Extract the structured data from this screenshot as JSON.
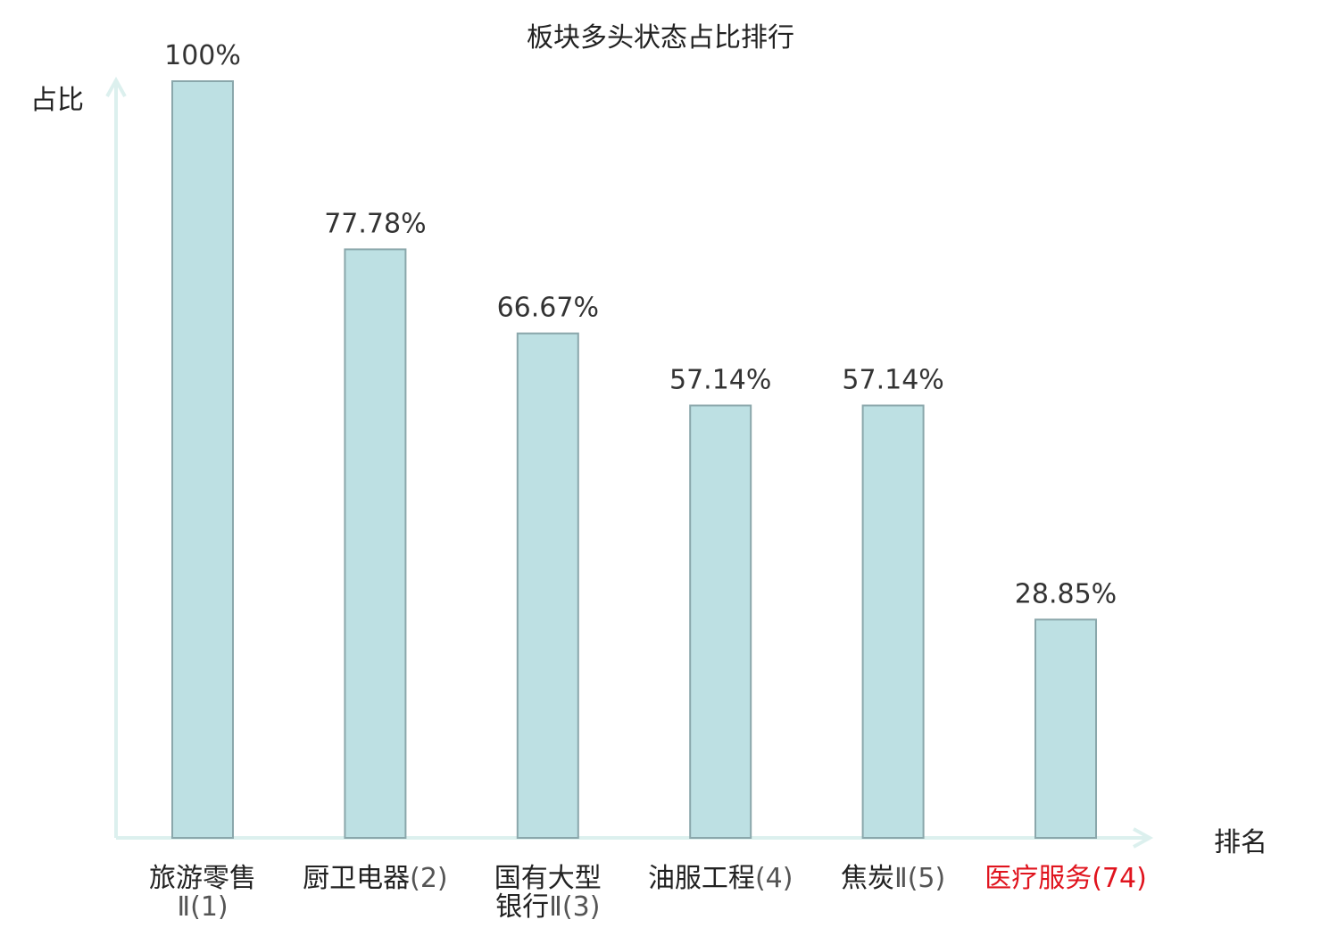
{
  "chart_data": {
    "type": "bar",
    "title": "板块多头状态占比排行",
    "xlabel": "排名",
    "ylabel": "占比",
    "categories": [
      "旅游零售Ⅱ(1)",
      "厨卫电器(2)",
      "国有大型银行Ⅱ(3)",
      "油服工程(4)",
      "焦炭Ⅱ(5)",
      "医疗服务(74)"
    ],
    "category_lines": [
      [
        {
          "name": "旅游零售"
        },
        {
          "name": "",
          "rank": "Ⅱ(1)"
        }
      ],
      [
        {
          "name": "厨卫电器",
          "rank": "(2)"
        }
      ],
      [
        {
          "name": "国有大型"
        },
        {
          "name": "银行",
          "rank": "Ⅱ(3)"
        }
      ],
      [
        {
          "name": "油服工程",
          "rank": "(4)"
        }
      ],
      [
        {
          "name": "焦炭",
          "rank": "Ⅱ(5)"
        }
      ],
      [
        {
          "name": "医疗服务",
          "rank": "(74)"
        }
      ]
    ],
    "values": [
      100,
      77.78,
      66.67,
      57.14,
      57.14,
      28.85
    ],
    "value_labels": [
      "100%",
      "77.78%",
      "66.67%",
      "57.14%",
      "57.14%",
      "28.85%"
    ],
    "highlight_index": 5,
    "ylim": [
      0,
      100
    ],
    "grid": false,
    "colors": {
      "bar_fill": "#bde0e3",
      "bar_stroke": "#8aa7ab",
      "axis": "#dcf0ee",
      "highlight": "#e0141e"
    }
  }
}
